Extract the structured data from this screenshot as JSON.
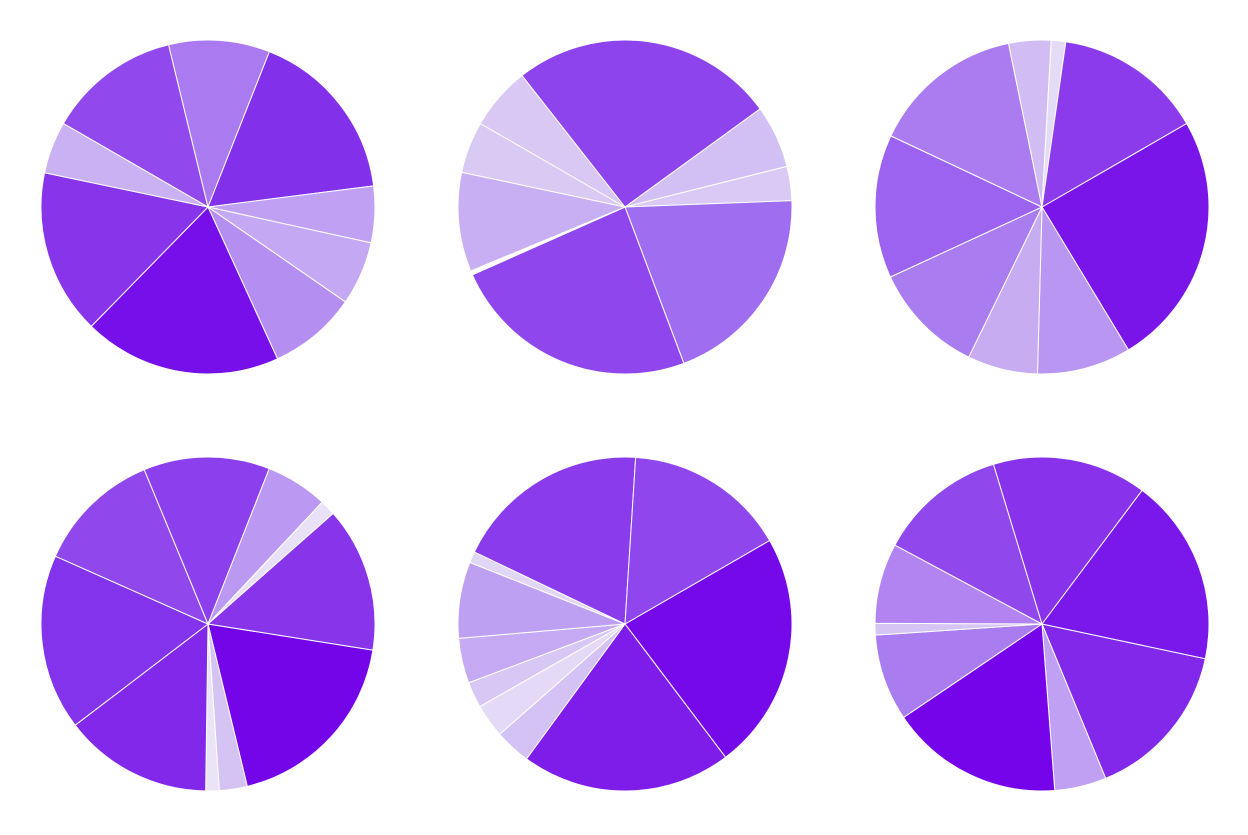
{
  "chart_data": [
    {
      "type": "pie",
      "values": [
        12.5,
        9.5,
        16.5,
        5.3,
        6.0,
        8.3,
        18.6,
        15.5,
        4.9
      ],
      "colors": [
        "#9149ed",
        "#aa7bf0",
        "#8330eb",
        "#c0a0f3",
        "#c4a8f3",
        "#b58ef1",
        "#760fea",
        "#8834eb",
        "#c9b1f3"
      ]
    },
    {
      "type": "pie",
      "values": [
        6.1,
        3.3,
        19.9,
        24.1,
        0.4,
        9.6,
        5.0,
        6.1,
        25.6
      ],
      "colors": [
        "#d2bff3",
        "#dac9f5",
        "#9f6df0",
        "#9046ed",
        "#ffffff",
        "#c8aef2",
        "#d9caf4",
        "#d8c8f3",
        "#8d44ed"
      ]
    },
    {
      "type": "pie",
      "values": [
        24.7,
        9.1,
        6.8,
        10.9,
        13.9,
        14.8,
        4.1,
        1.4,
        14.4
      ],
      "colors": [
        "#7a15ea",
        "#b896f1",
        "#c8acf2",
        "#a97cf0",
        "#9b63ef",
        "#ab7cf0",
        "#d1bdf3",
        "#e4dbf6",
        "#8c3bec"
      ]
    },
    {
      "type": "pie",
      "values": [
        18.7,
        2.7,
        1.3,
        14.4,
        17.0,
        12.1,
        12.2,
        6.0,
        1.5,
        14.0
      ],
      "colors": [
        "#7405e9",
        "#d5c3f4",
        "#ebe4f7",
        "#8128eb",
        "#8333ec",
        "#9048ed",
        "#8c3fec",
        "#bb99f2",
        "#e9e1f7",
        "#8834eb"
      ]
    },
    {
      "type": "pie",
      "values": [
        21.2,
        18.7,
        3.2,
        3.0,
        2.3,
        4.0,
        6.8,
        1.0,
        17.4,
        14.4
      ],
      "colors": [
        "#7509ea",
        "#7e1cea",
        "#d4c2f4",
        "#e4d9f6",
        "#d7c7f4",
        "#c5a9f3",
        "#bea0f2",
        "#e1d6f6",
        "#8a3bec",
        "#9046ed"
      ]
    },
    {
      "type": "pie",
      "values": [
        15.1,
        4.9,
        16.4,
        8.2,
        1.1,
        7.6,
        12.2,
        14.6,
        17.7
      ],
      "colors": [
        "#8128eb",
        "#c0a0f3",
        "#7504ea",
        "#a97cf0",
        "#d5c4f4",
        "#b184f1",
        "#9048ed",
        "#8833eb",
        "#7a17ea"
      ]
    }
  ]
}
